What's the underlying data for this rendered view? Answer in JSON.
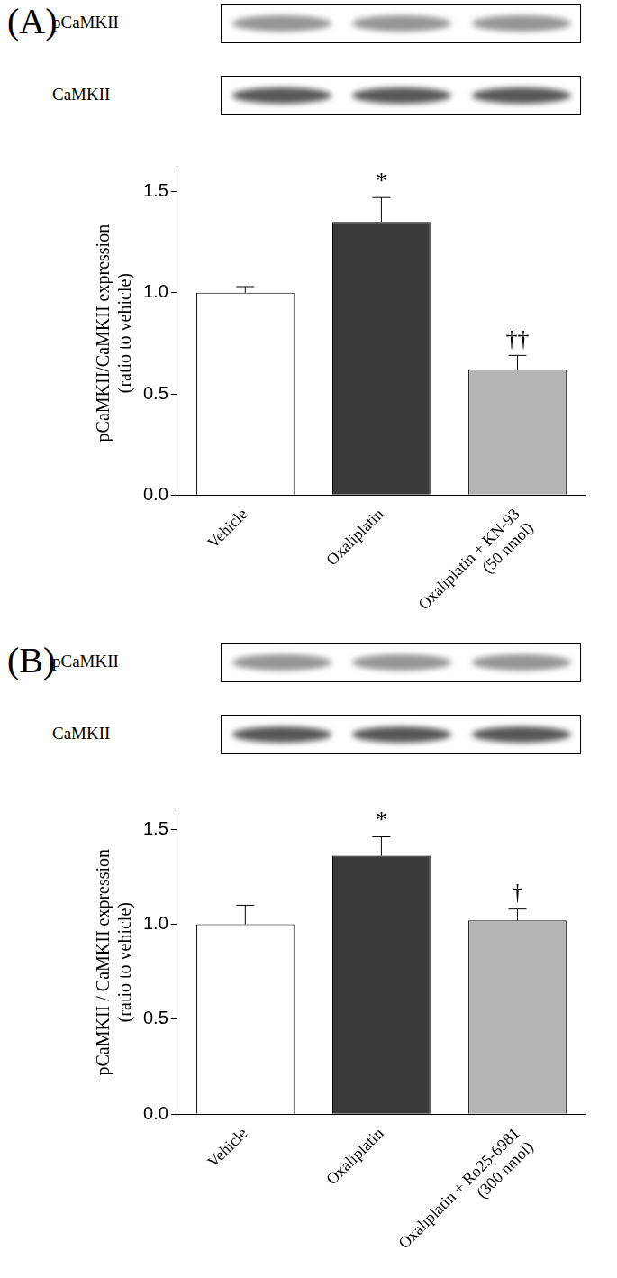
{
  "chart_data": [
    {
      "type": "bar",
      "title": "(A)",
      "blot_labels": [
        "pCaMKII",
        "CaMKII"
      ],
      "y_label": [
        "pCaMKII/CaMKII expression",
        "(ratio to vehicle)"
      ],
      "categories": [
        [
          "Vehicle"
        ],
        [
          "Oxaliplatin"
        ],
        [
          "Oxaliplatin + KN-93",
          "(50 nmol)"
        ]
      ],
      "values": [
        1.0,
        1.35,
        0.62
      ],
      "errors": [
        0.03,
        0.12,
        0.07
      ],
      "annotations": [
        null,
        "*",
        "††"
      ],
      "colors": [
        "#ffffff",
        "#3a3a3a",
        "#b4b4b4"
      ],
      "ylim": [
        0,
        1.6
      ],
      "yticks": [
        {
          "value": 0,
          "label": "0.0"
        },
        0.5,
        {
          "value": 1,
          "label": "1.0"
        },
        1.5
      ],
      "grid": false
    },
    {
      "type": "bar",
      "title": "(B)",
      "blot_labels": [
        "pCaMKII",
        "CaMKII"
      ],
      "y_label": [
        "pCaMKII / CaMKII expression",
        "(ratio to vehicle)"
      ],
      "categories": [
        [
          "Vehicle"
        ],
        [
          "Oxaliplatin"
        ],
        [
          "Oxaliplatin + Ro25-6981",
          "(300 nmol)"
        ]
      ],
      "values": [
        1.0,
        1.36,
        1.02
      ],
      "errors": [
        0.1,
        0.1,
        0.06
      ],
      "annotations": [
        null,
        "*",
        "†"
      ],
      "colors": [
        "#ffffff",
        "#3a3a3a",
        "#b4b4b4"
      ],
      "ylim": [
        0,
        1.6
      ],
      "yticks": [
        {
          "value": 0,
          "label": "0.0"
        },
        0.5,
        {
          "value": 1,
          "label": "1.0"
        },
        1.5
      ],
      "grid": false
    }
  ]
}
